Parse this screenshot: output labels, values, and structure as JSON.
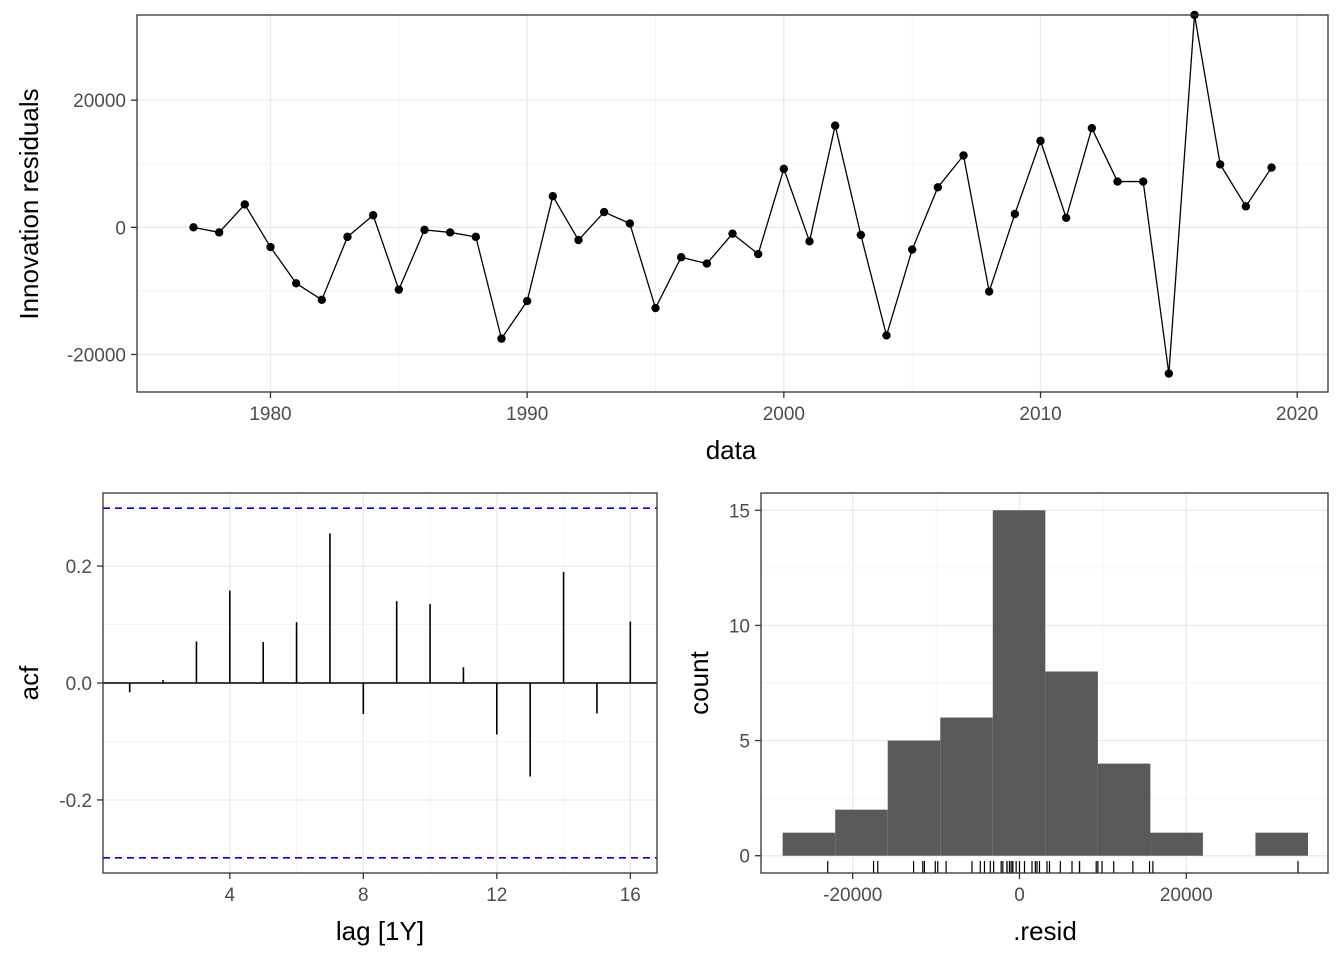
{
  "chart_data": [
    {
      "type": "line",
      "xlabel": "data",
      "ylabel": "Innovation residuals",
      "xlim": [
        1974.8,
        2021.2
      ],
      "ylim": [
        -25900,
        33400
      ],
      "xticks": [
        1980,
        1990,
        2000,
        2010,
        2020
      ],
      "yticks": [
        -20000,
        0,
        20000
      ],
      "x": [
        1977,
        1978,
        1979,
        1980,
        1981,
        1982,
        1983,
        1984,
        1985,
        1986,
        1987,
        1988,
        1989,
        1990,
        1991,
        1992,
        1993,
        1994,
        1995,
        1996,
        1997,
        1998,
        1999,
        2000,
        2001,
        2002,
        2003,
        2004,
        2005,
        2006,
        2007,
        2008,
        2009,
        2010,
        2011,
        2012,
        2013,
        2014,
        2015,
        2016,
        2017,
        2018,
        2019
      ],
      "series": [
        {
          "values": [
            0,
            -800,
            3600,
            -3100,
            -8800,
            -11400,
            -1500,
            1900,
            -9800,
            -400,
            -800,
            -1500,
            -17500,
            -11600,
            4900,
            -2000,
            2400,
            600,
            -12700,
            -4700,
            -5700,
            -1000,
            -4200,
            9200,
            -2200,
            16000,
            -1200,
            -17000,
            -3500,
            6300,
            11300,
            -10100,
            2100,
            13600,
            1500,
            15600,
            7200,
            7200,
            -23000,
            33400,
            9900,
            3300,
            9400
          ]
        }
      ]
    },
    {
      "type": "bar",
      "xlabel": "lag [1Y]",
      "ylabel": "acf",
      "xlim": [
        0.2,
        16.8
      ],
      "ylim": [
        -0.325,
        0.325
      ],
      "xticks": [
        4,
        8,
        12,
        16
      ],
      "yticks": [
        -0.2,
        0.0,
        0.2
      ],
      "ytick_labels": [
        "-0.2",
        "0.0",
        "0.2"
      ],
      "confidence_bound": 0.299,
      "confidence_color": "#0000ff",
      "categories": [
        1,
        2,
        3,
        4,
        5,
        6,
        7,
        8,
        9,
        10,
        11,
        12,
        13,
        14,
        15,
        16
      ],
      "values": [
        -0.016,
        0.005,
        0.071,
        0.158,
        0.07,
        0.104,
        0.256,
        -0.053,
        0.14,
        0.135,
        0.027,
        -0.088,
        -0.16,
        0.19,
        -0.052,
        0.105
      ]
    },
    {
      "type": "bar",
      "xlabel": ".resid",
      "ylabel": "count",
      "xlim": [
        -31000,
        37000
      ],
      "ylim": [
        -0.75,
        15.75
      ],
      "xticks": [
        -20000,
        0,
        20000
      ],
      "yticks": [
        0,
        5,
        10,
        15
      ],
      "bar_color": "#595959",
      "bins": [
        {
          "x0": -28400,
          "x1": -22100,
          "count": 1
        },
        {
          "x0": -22100,
          "x1": -15800,
          "count": 2
        },
        {
          "x0": -15800,
          "x1": -9500,
          "count": 5
        },
        {
          "x0": -9500,
          "x1": -3200,
          "count": 6
        },
        {
          "x0": -3200,
          "x1": 3100,
          "count": 15
        },
        {
          "x0": 3100,
          "x1": 9400,
          "count": 8
        },
        {
          "x0": 9400,
          "x1": 15700,
          "count": 4
        },
        {
          "x0": 15700,
          "x1": 22000,
          "count": 1
        },
        {
          "x0": 22000,
          "x1": 28300,
          "count": 0
        },
        {
          "x0": 28300,
          "x1": 34600,
          "count": 1
        }
      ],
      "rug": [
        0,
        -800,
        3600,
        -3100,
        -8800,
        -11400,
        -1500,
        1900,
        -9800,
        -400,
        -800,
        -1500,
        -17500,
        -11600,
        4900,
        -2000,
        2400,
        600,
        -12700,
        -4700,
        -5700,
        -1000,
        -4200,
        9200,
        -2200,
        16000,
        -1200,
        -17000,
        -3500,
        6300,
        11300,
        -10100,
        2100,
        13600,
        1500,
        15600,
        7200,
        7200,
        -23000,
        33400,
        9900,
        3300,
        9400
      ]
    }
  ]
}
